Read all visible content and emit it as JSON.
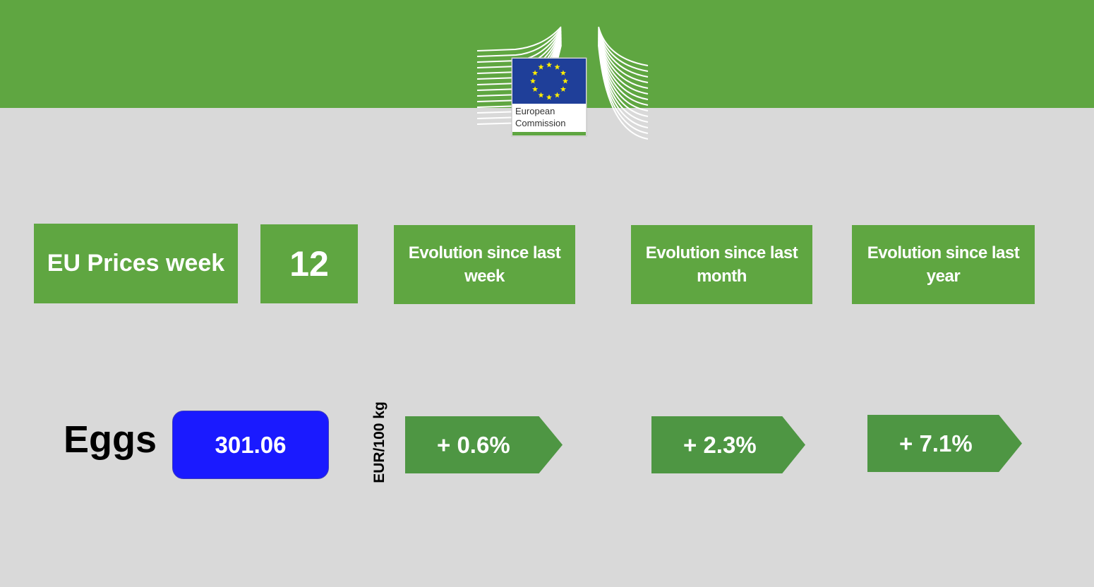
{
  "header": {
    "logo_text": [
      "European",
      "Commission"
    ]
  },
  "labels": {
    "title": "EU Prices week",
    "week": "12",
    "since_week": "Evolution since last week",
    "since_month": "Evolution since last month",
    "since_year": "Evolution since last year"
  },
  "product": {
    "name": "Eggs",
    "price": "301.06",
    "unit": "EUR/100 kg",
    "change_week": "+ 0.6%",
    "change_month": "+ 2.3%",
    "change_year": "+ 7.1%"
  }
}
